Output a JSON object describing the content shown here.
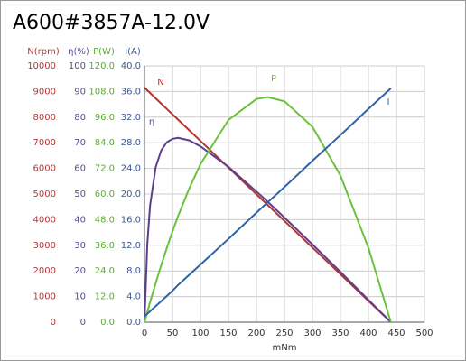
{
  "chart_data": {
    "type": "line",
    "title": "A600#3857A-12.0V",
    "x_label": "mNm",
    "xlim": [
      0,
      500
    ],
    "xticks": [
      0,
      50,
      100,
      150,
      200,
      250,
      300,
      350,
      400,
      450,
      500
    ],
    "grid": true,
    "axes": [
      {
        "label": "N(rpm)",
        "color": "#b03a3a",
        "lim": [
          0,
          10000
        ],
        "ticks": [
          0,
          1000,
          2000,
          3000,
          4000,
          5000,
          6000,
          7000,
          8000,
          9000,
          10000
        ]
      },
      {
        "label": "η(%)",
        "color": "#5b4a9a",
        "lim": [
          0,
          100
        ],
        "ticks": [
          0,
          10,
          20,
          30,
          40,
          50,
          60,
          70,
          80,
          90,
          100
        ]
      },
      {
        "label": "P(W)",
        "color": "#5aad2e",
        "lim": [
          0,
          120
        ],
        "ticks": [
          {
            "value": 0,
            "label": "0.0"
          },
          {
            "value": 12,
            "label": "12.0"
          },
          {
            "value": 24,
            "label": "24.0"
          },
          {
            "value": 36,
            "label": "36.0"
          },
          {
            "value": 48,
            "label": "48.0"
          },
          {
            "value": 60,
            "label": "60.0"
          },
          {
            "value": 72,
            "label": "72.0"
          },
          {
            "value": 84,
            "label": "84.0"
          },
          {
            "value": 96,
            "label": "96.0"
          },
          {
            "value": 108,
            "label": "108.0"
          },
          {
            "value": 120,
            "label": "120.0"
          }
        ]
      },
      {
        "label": "I(A)",
        "color": "#3a5a9a",
        "lim": [
          0,
          40
        ],
        "ticks": [
          {
            "value": 0,
            "label": "0.0"
          },
          {
            "value": 4,
            "label": "4.0"
          },
          {
            "value": 8,
            "label": "8.0"
          },
          {
            "value": 12,
            "label": "12.0"
          },
          {
            "value": 16,
            "label": "16.0"
          },
          {
            "value": 20,
            "label": "20.0"
          },
          {
            "value": 24,
            "label": "24.0"
          },
          {
            "value": 28,
            "label": "28.0"
          },
          {
            "value": 32,
            "label": "32.0"
          },
          {
            "value": 36,
            "label": "36.0"
          },
          {
            "value": 40,
            "label": "40.0"
          }
        ]
      }
    ],
    "x": [
      0,
      5,
      10,
      20,
      30,
      40,
      50,
      60,
      80,
      100,
      150,
      200,
      220,
      250,
      300,
      350,
      400,
      440
    ],
    "series": [
      {
        "name": "N",
        "color": "#b5342f",
        "axis": 0,
        "values": [
          9150,
          9046,
          8942,
          8734,
          8526,
          8318,
          8110,
          7902,
          7486,
          7070,
          6031,
          4991,
          4575,
          3951,
          2911,
          1872,
          832,
          0
        ]
      },
      {
        "name": "η",
        "color": "#5a3f8f",
        "axis": 1,
        "values": [
          0,
          30.4,
          45.6,
          60.5,
          67.1,
          70.2,
          71.5,
          71.9,
          70.9,
          68.6,
          60.6,
          51.0,
          47.0,
          40.8,
          30.3,
          19.6,
          8.7,
          0
        ]
      },
      {
        "name": "P",
        "color": "#6cc13c",
        "axis": 2,
        "values": [
          0,
          4.7,
          9.4,
          18.3,
          26.8,
          34.8,
          42.5,
          49.7,
          62.7,
          74.0,
          94.7,
          104.5,
          105.4,
          103.4,
          91.5,
          68.6,
          34.8,
          0
        ]
      },
      {
        "name": "I",
        "color": "#2e63a8",
        "axis": 3,
        "values": [
          0.9,
          1.3,
          1.7,
          2.5,
          3.3,
          4.1,
          4.9,
          5.8,
          7.4,
          9.0,
          13.0,
          17.1,
          18.7,
          21.1,
          25.2,
          29.2,
          33.3,
          36.5
        ]
      }
    ]
  }
}
